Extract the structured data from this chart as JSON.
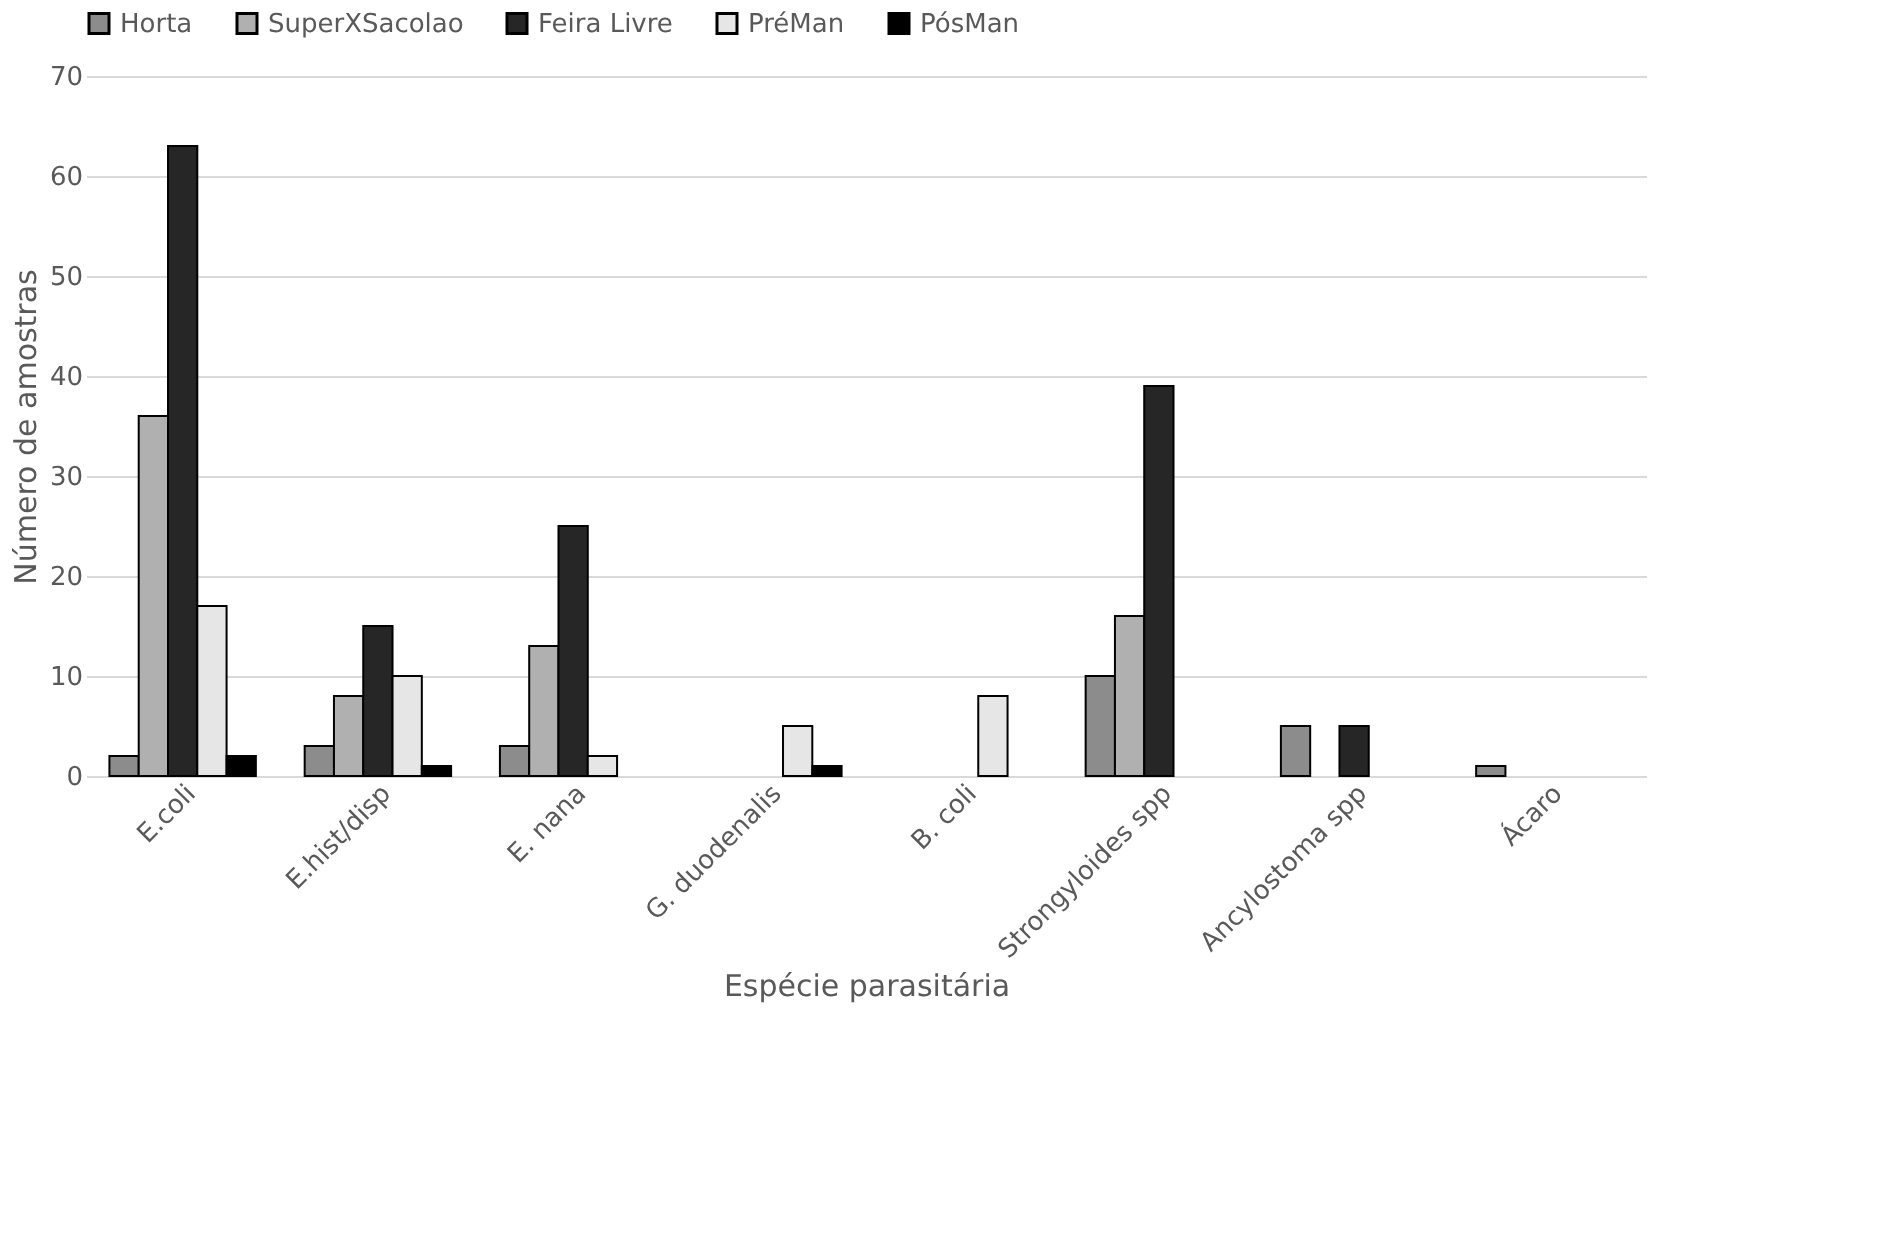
{
  "chart_data": {
    "type": "bar",
    "xlabel": "Espécie parasitária",
    "ylabel": "Número de amostras",
    "categories": [
      "E.coli",
      "E.hist/disp",
      "E. nana",
      "G. duodenalis",
      "B. coli",
      "Strongyloides spp",
      "Ancylostoma spp",
      "Ácaro"
    ],
    "series": [
      {
        "name": "Horta",
        "color": "#8c8c8c",
        "values": [
          2,
          3,
          3,
          null,
          null,
          10,
          5,
          1
        ]
      },
      {
        "name": "SuperXSacolao",
        "color": "#b0b0b0",
        "values": [
          36,
          8,
          13,
          null,
          null,
          16,
          null,
          null
        ]
      },
      {
        "name": "Feira Livre",
        "color": "#262626",
        "values": [
          63,
          15,
          25,
          null,
          null,
          39,
          5,
          null
        ]
      },
      {
        "name": "PréMan",
        "color": "#e6e6e6",
        "values": [
          17,
          10,
          2,
          5,
          8,
          null,
          null,
          null
        ]
      },
      {
        "name": "PósMan",
        "color": "#000000",
        "values": [
          2,
          1,
          null,
          1,
          null,
          null,
          null,
          null
        ]
      }
    ],
    "ylim": [
      0,
      70
    ],
    "yticks": [
      0,
      10,
      20,
      30,
      40,
      50,
      60,
      70
    ],
    "grid": "y",
    "legend": "top"
  }
}
